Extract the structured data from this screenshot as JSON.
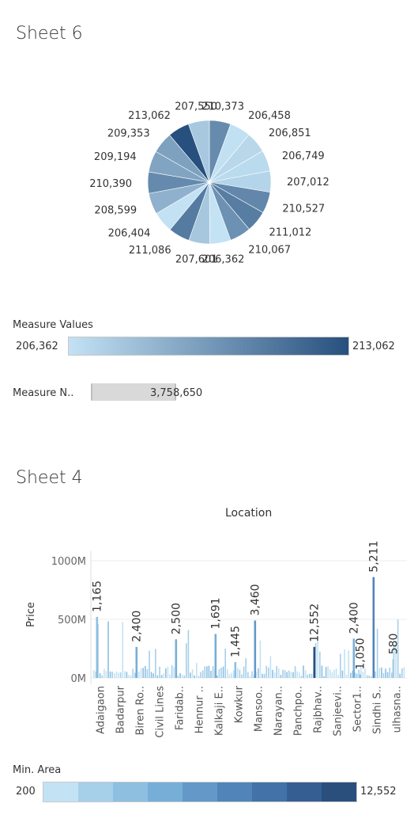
{
  "sheet6": {
    "title": "Sheet 6",
    "legend": {
      "title": "Measure Values",
      "min_label": "206,362",
      "max_label": "213,062",
      "color_low": "#c3e2f4",
      "color_high": "#27507e"
    },
    "measure_names": {
      "title": "Measure N..",
      "value_label": "3,758,650"
    }
  },
  "sheet4": {
    "title": "Sheet 4",
    "legend": {
      "title": "Min. Area",
      "min_label": "200",
      "max_label": "12,552",
      "steps": [
        "#c3e2f4",
        "#a6cfea",
        "#8ebfe1",
        "#77aed7",
        "#6398c8",
        "#5185ba",
        "#4272a7",
        "#355f93",
        "#2a4f7d"
      ]
    }
  },
  "chart_data": [
    {
      "type": "pie",
      "labels": [
        "210,373",
        "206,458",
        "206,851",
        "206,749",
        "207,012",
        "210,527",
        "211,012",
        "210,067",
        "206,362",
        "207,601",
        "211,086",
        "206,404",
        "208,599",
        "210,390",
        "209,194",
        "209,353",
        "213,062",
        "207,550"
      ],
      "values": [
        210373,
        206458,
        206851,
        206749,
        207012,
        210527,
        211012,
        210067,
        206362,
        207601,
        211086,
        206404,
        208599,
        210390,
        209194,
        209353,
        213062,
        207550
      ],
      "total": 3758650
    },
    {
      "type": "bar",
      "title": "Location",
      "xlabel": "",
      "ylabel": "Price",
      "yticks": [
        "0M",
        "500M",
        "1000M"
      ],
      "ylim": [
        0,
        1100
      ],
      "unit": "M",
      "categories": [
        "Adaigaon",
        "Badarpur",
        "Biren Ro..",
        "Civil Lines",
        "Faridab..",
        "Hennur ..",
        "Kalkaji E..",
        "Kowkur",
        "Mansoo..",
        "Narayan..",
        "Panchpo..",
        "Rajbhav..",
        "Sanjeevi..",
        "Sector1..",
        "Sindhi S..",
        "ulhasna.."
      ],
      "labeled_bars": [
        {
          "category": "Adaigaon",
          "value": 520,
          "label": "1,165",
          "min_area": 1165
        },
        {
          "category": "Biren Ro..",
          "value": 265,
          "label": "2,400",
          "min_area": 2400
        },
        {
          "category": "Faridab..",
          "value": 330,
          "label": "2,500",
          "min_area": 2500
        },
        {
          "category": "Kalkaji E..",
          "value": 375,
          "label": "1,691",
          "min_area": 1691
        },
        {
          "category": "Kowkur",
          "value": 135,
          "label": "1,445",
          "min_area": 1445
        },
        {
          "category": "Mansoo..",
          "value": 490,
          "label": "3,460",
          "min_area": 3460
        },
        {
          "category": "Rajbhav..",
          "value": 265,
          "label": "12,552",
          "min_area": 12552
        },
        {
          "category": "Sector1..",
          "value": 335,
          "label": "2,400",
          "min_area": 2400
        },
        {
          "category": "Sector1..",
          "value": 30,
          "label": "1,050",
          "min_area": 1050
        },
        {
          "category": "Sindhi S..",
          "value": 860,
          "label": "5,211",
          "min_area": 5211
        },
        {
          "category": "ulhasna..",
          "value": 160,
          "label": "580",
          "min_area": 580
        }
      ]
    }
  ]
}
